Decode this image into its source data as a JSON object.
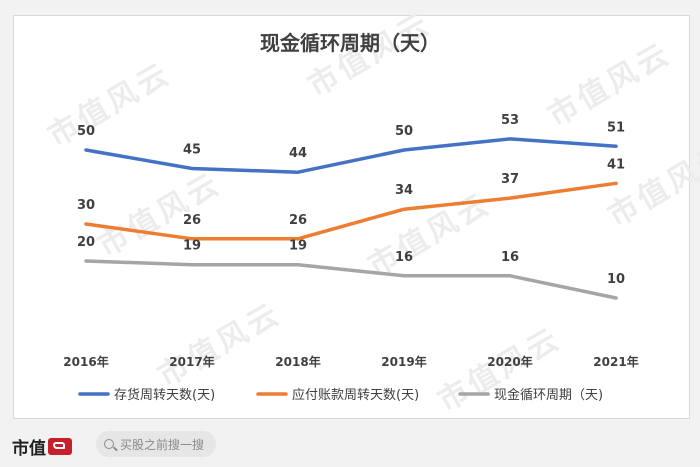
{
  "chart_data": {
    "type": "line",
    "title": "现金循环周期（天）",
    "categories": [
      "2016年",
      "2017年",
      "2018年",
      "2019年",
      "2020年",
      "2021年"
    ],
    "series": [
      {
        "name": "存货周转天数(天)",
        "color": "#4472c4",
        "values": [
          50,
          45,
          44,
          50,
          53,
          51
        ]
      },
      {
        "name": "应付账款周转天数(天)",
        "color": "#ed7d31",
        "values": [
          30,
          26,
          26,
          34,
          37,
          41
        ]
      },
      {
        "name": "现金循环周期（天)",
        "color": "#a5a5a5",
        "values": [
          20,
          19,
          19,
          16,
          16,
          10
        ]
      }
    ],
    "xlabel": "",
    "ylabel": "",
    "ylim": [
      0,
      60
    ],
    "grid": false,
    "legend_position": "bottom"
  },
  "watermark_text": "市值风云",
  "footer": {
    "brand_text": "市值",
    "search_placeholder": "买股之前搜一搜"
  }
}
